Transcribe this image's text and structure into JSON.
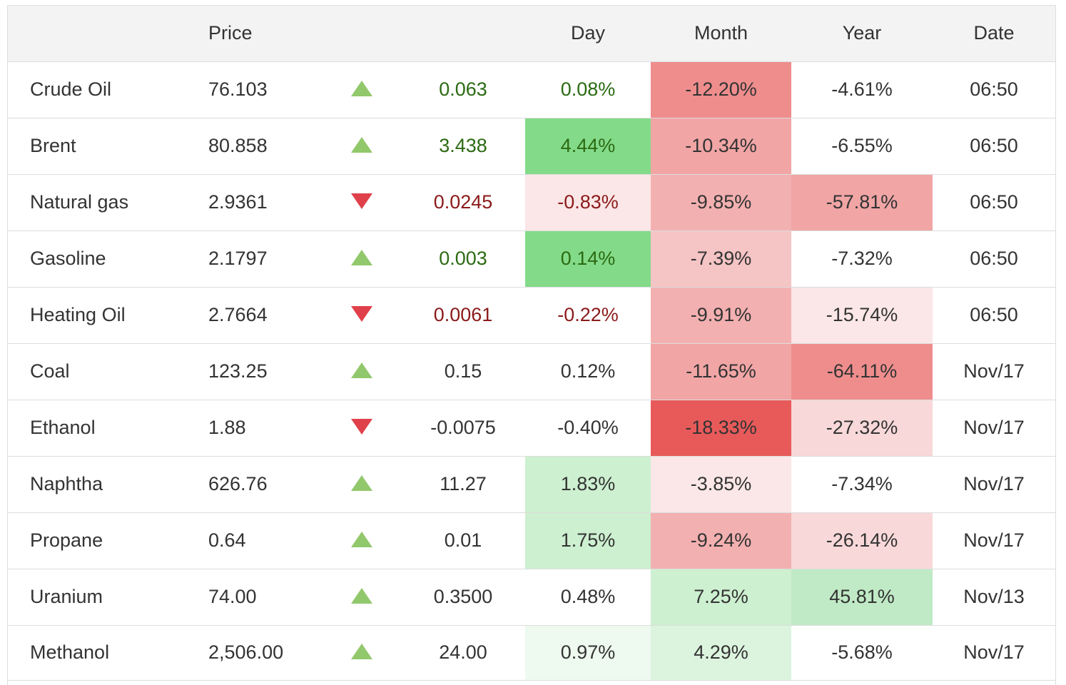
{
  "headers": {
    "name": "",
    "price": "Price",
    "arrow": "",
    "change": "",
    "day": "Day",
    "month": "Month",
    "year": "Year",
    "date": "Date"
  },
  "colors": {
    "up_text": "#2b6a12",
    "down_text": "#8b1a1a",
    "up_arrow": "#92c86c",
    "down_arrow": "#e0404a"
  },
  "rows": [
    {
      "name": "Crude Oil",
      "price": "76.103",
      "direction": "up",
      "change": "0.063",
      "change_color": "up",
      "day": "0.08%",
      "day_bg": "",
      "day_color": "up",
      "month": "-12.20%",
      "month_bg": "#ef8d8d",
      "year": "-4.61%",
      "year_bg": "",
      "date": "06:50"
    },
    {
      "name": "Brent",
      "price": "80.858",
      "direction": "up",
      "change": "3.438",
      "change_color": "up",
      "day": "4.44%",
      "day_bg": "#83da89",
      "day_color": "up",
      "month": "-10.34%",
      "month_bg": "#f1a5a5",
      "year": "-6.55%",
      "year_bg": "",
      "date": "06:50"
    },
    {
      "name": "Natural gas",
      "price": "2.9361",
      "direction": "down",
      "change": "0.0245",
      "change_color": "down",
      "day": "-0.83%",
      "day_bg": "#fbe7e7",
      "day_color": "down",
      "month": "-9.85%",
      "month_bg": "#f3b0b0",
      "year": "-57.81%",
      "year_bg": "#f1a5a5",
      "date": "06:50"
    },
    {
      "name": "Gasoline",
      "price": "2.1797",
      "direction": "up",
      "change": "0.003",
      "change_color": "up",
      "day": "0.14%",
      "day_bg": "#83da89",
      "day_color": "up",
      "month": "-7.39%",
      "month_bg": "#f5c4c4",
      "year": "-7.32%",
      "year_bg": "",
      "date": "06:50"
    },
    {
      "name": "Heating Oil",
      "price": "2.7664",
      "direction": "down",
      "change": "0.0061",
      "change_color": "down",
      "day": "-0.22%",
      "day_bg": "",
      "day_color": "down",
      "month": "-9.91%",
      "month_bg": "#f3b0b0",
      "year": "-15.74%",
      "year_bg": "#fbe7e7",
      "date": "06:50"
    },
    {
      "name": "Coal",
      "price": "123.25",
      "direction": "up",
      "change": "0.15",
      "change_color": "",
      "day": "0.12%",
      "day_bg": "",
      "day_color": "",
      "month": "-11.65%",
      "month_bg": "#f1a5a5",
      "year": "-64.11%",
      "year_bg": "#ef8d8d",
      "date": "Nov/17"
    },
    {
      "name": "Ethanol",
      "price": "1.88",
      "direction": "down",
      "change": "-0.0075",
      "change_color": "",
      "day": "-0.40%",
      "day_bg": "",
      "day_color": "",
      "month": "-18.33%",
      "month_bg": "#e85a5a",
      "year": "-27.32%",
      "year_bg": "#f8d8d8",
      "date": "Nov/17"
    },
    {
      "name": "Naphtha",
      "price": "626.76",
      "direction": "up",
      "change": "11.27",
      "change_color": "",
      "day": "1.83%",
      "day_bg": "#cdf0d0",
      "day_color": "",
      "month": "-3.85%",
      "month_bg": "#fbe7e7",
      "year": "-7.34%",
      "year_bg": "",
      "date": "Nov/17"
    },
    {
      "name": "Propane",
      "price": "0.64",
      "direction": "up",
      "change": "0.01",
      "change_color": "",
      "day": "1.75%",
      "day_bg": "#cdf0d0",
      "day_color": "",
      "month": "-9.24%",
      "month_bg": "#f3b0b0",
      "year": "-26.14%",
      "year_bg": "#f8d8d8",
      "date": "Nov/17"
    },
    {
      "name": "Uranium",
      "price": "74.00",
      "direction": "up",
      "change": "0.3500",
      "change_color": "",
      "day": "0.48%",
      "day_bg": "",
      "day_color": "",
      "month": "7.25%",
      "month_bg": "#cdf0d0",
      "year": "45.81%",
      "year_bg": "#bfeac5",
      "date": "Nov/13"
    },
    {
      "name": "Methanol",
      "price": "2,506.00",
      "direction": "up",
      "change": "24.00",
      "change_color": "",
      "day": "0.97%",
      "day_bg": "#eef9ef",
      "day_color": "",
      "month": "4.29%",
      "month_bg": "#dcf4de",
      "year": "-5.68%",
      "year_bg": "",
      "date": "Nov/17"
    }
  ]
}
